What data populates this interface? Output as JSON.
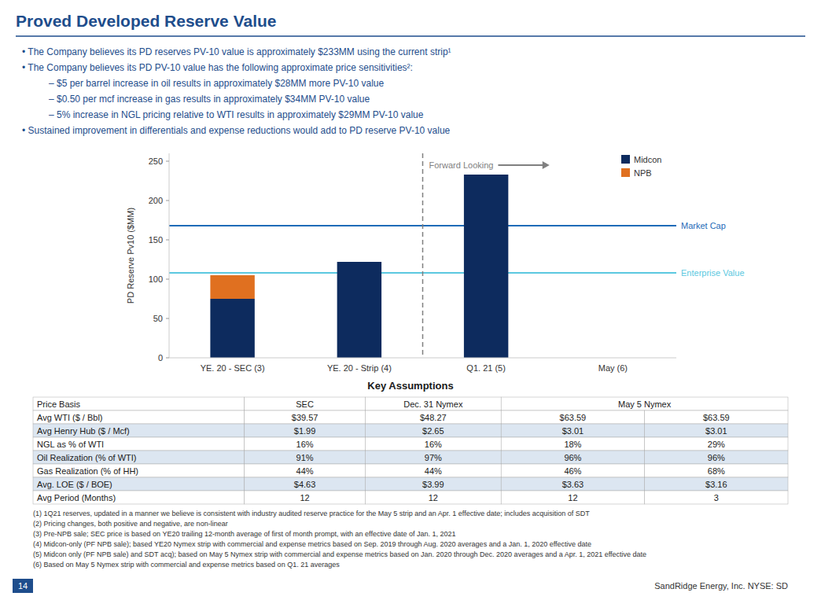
{
  "page_title": "Proved Developed Reserve Value",
  "text_color": "#1e4d8c",
  "bullets": [
    {
      "text": "•  The Company believes its PD reserves PV-10 value is approximately $233MM using the current strip¹"
    },
    {
      "text": "•  The Company believes its PD  PV-10 value has the following approximate price sensitivities²:",
      "sub": [
        "–  $5 per barrel increase in oil results in approximately $28MM more PV-10 value",
        "–  $0.50 per mcf increase in gas results in approximately $34MM PV-10 value",
        "–  5% increase in NGL pricing relative to WTI results in approximately $29MM PV-10 value"
      ]
    },
    {
      "text": "•  Sustained improvement in differentials and expense reductions would add to PD reserve PV-10 value"
    }
  ],
  "chart_data": {
    "type": "bar",
    "stacked": true,
    "grid": false,
    "legend": "upper right",
    "categories": [
      "YE. 20 - SEC (3)",
      "YE. 20 - Strip (4)",
      "Q1. 21 (5)",
      "May (6)"
    ],
    "series": [
      {
        "name": "Midcon",
        "color": "#0d2b5e",
        "values": [
          75,
          122,
          233,
          0
        ]
      },
      {
        "name": "NPB",
        "color": "#e07020",
        "values": [
          30,
          0,
          0,
          0
        ]
      }
    ],
    "reference_lines": [
      {
        "name": "Market Cap",
        "value": 168,
        "color": "#1e6bb8"
      },
      {
        "name": "Enterprise Value",
        "value": 108,
        "color": "#5bc8e0"
      }
    ],
    "annotation": "Forward Looking",
    "ylabel": "PD Reserve Pv10 ($MM)",
    "ylim": [
      0,
      260
    ],
    "yticks": [
      0,
      50,
      100,
      150,
      200,
      250
    ]
  },
  "table": {
    "title": "Key Assumptions",
    "alt_color": "#dce6f1",
    "headers": [
      {
        "text": "Price Basis"
      },
      {
        "text": "SEC"
      },
      {
        "text": "Dec. 31 Nymex"
      },
      {
        "text": "May 5 Nymex",
        "span": 2
      }
    ],
    "rows": [
      [
        "Avg WTI ($ / Bbl)",
        "$39.57",
        "$48.27",
        "$63.59",
        "$63.59"
      ],
      [
        "Avg  Henry Hub ($ / Mcf)",
        "$1.99",
        "$2.65",
        "$3.01",
        "$3.01"
      ],
      [
        "NGL as % of WTI",
        "16%",
        "16%",
        "18%",
        "29%"
      ],
      [
        "Oil Realization (% of WTI)",
        "91%",
        "97%",
        "96%",
        "96%"
      ],
      [
        "Gas Realization (% of HH)",
        "44%",
        "44%",
        "46%",
        "68%"
      ],
      [
        "Avg. LOE ($ / BOE)",
        "$4.63",
        "$3.99",
        "$3.63",
        "$3.16"
      ],
      [
        "Avg Period (Months)",
        "12",
        "12",
        "12",
        "3"
      ]
    ]
  },
  "footnotes": [
    "(1)  1Q21 reserves, updated in a manner we believe is consistent with industry audited reserve practice for the May 5 strip and an Apr. 1 effective date; includes acquisition of SDT",
    "(2)  Pricing changes, both positive and negative, are non-linear",
    "(3)  Pre-NPB sale; SEC price is based on YE20 trailing 12-month average of first of month prompt, with an effective date of Jan. 1, 2021",
    "(4)  Midcon-only (PF NPB sale); based YE20 Nymex strip with commercial and expense metrics based on Sep. 2019 through Aug. 2020 averages and a Jan. 1, 2020 effective date",
    "(5)  Midcon only (PF NPB sale) and SDT acq); based on May 5 Nymex strip with commercial and expense metrics based on Jan. 2020 through Dec. 2020 averages and a Apr. 1, 2021 effective date",
    "(6)  Based on May 5 Nymex strip with commercial and expense metrics based on Q1. 21 averages"
  ],
  "page_number": "14",
  "company_name": "SandRidge Energy, Inc.  NYSE: SD"
}
